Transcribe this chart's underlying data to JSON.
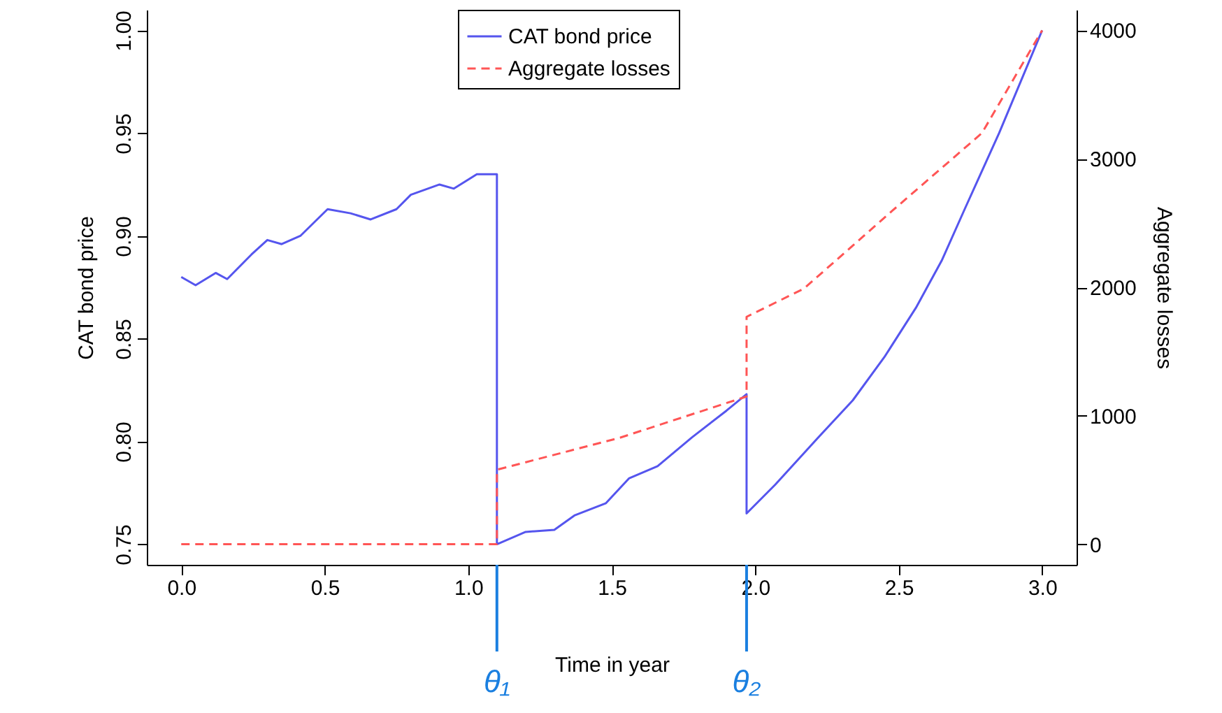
{
  "chart_data": {
    "type": "line",
    "xlabel": "Time in year",
    "ylabel": "CAT bond price",
    "y2label": "Aggregate losses",
    "xlim": [
      -0.12,
      3.12
    ],
    "ylim": [
      0.74,
      1.01
    ],
    "y2lim": [
      -160,
      4160
    ],
    "xticks": [
      {
        "value": 0,
        "label": "0.0"
      },
      0.5,
      {
        "value": 1,
        "label": "1.0"
      },
      1.5,
      {
        "value": 2,
        "label": "2.0"
      },
      2.5,
      {
        "value": 3,
        "label": "3.0"
      }
    ],
    "yticks": [
      0.75,
      {
        "value": 0.8,
        "label": "0.80"
      },
      0.85,
      {
        "value": 0.9,
        "label": "0.90"
      },
      0.95,
      {
        "value": 1,
        "label": "1.00"
      }
    ],
    "y2ticks": [
      0,
      1000,
      2000,
      3000,
      4000
    ],
    "grid": false,
    "legend": "top",
    "series": [
      {
        "name": "CAT bond price",
        "color": "#5555ee",
        "line_style": "solid",
        "x": [
          0,
          0.05,
          0.12,
          0.16,
          0.245,
          0.3,
          0.35,
          0.415,
          0.51,
          0.59,
          0.66,
          0.75,
          0.8,
          0.9,
          0.95,
          1.03,
          1.1,
          1.1,
          1.2,
          1.3,
          1.37,
          1.48,
          1.56,
          1.66,
          1.78,
          1.9,
          1.97,
          1.97,
          2.07,
          2.22,
          2.34,
          2.45,
          2.56,
          2.65,
          2.73,
          2.85,
          3.0
        ],
        "values": [
          0.88,
          0.876,
          0.882,
          0.879,
          0.891,
          0.898,
          0.896,
          0.9,
          0.913,
          0.911,
          0.908,
          0.913,
          0.92,
          0.925,
          0.923,
          0.93,
          0.93,
          0.75,
          0.756,
          0.757,
          0.764,
          0.77,
          0.782,
          0.788,
          0.802,
          0.815,
          0.823,
          0.765,
          0.779,
          0.802,
          0.82,
          0.841,
          0.865,
          0.888,
          0.913,
          0.95,
          1.0
        ]
      },
      {
        "name": "Aggregate losses",
        "color": "#ff5555",
        "line_style": "dashed",
        "axis": "y2",
        "x": [
          0,
          1.1,
          1.1,
          1.53,
          1.97,
          1.97,
          2.17,
          2.48,
          2.79,
          3.0
        ],
        "values": [
          0,
          0,
          580,
          830,
          1150,
          1770,
          1990,
          2600,
          3200,
          4000
        ]
      }
    ],
    "ref_lines": [
      {
        "axis": "x",
        "value": 1.1,
        "label": "θ₁",
        "color": "#1a7fe0"
      },
      {
        "axis": "x",
        "value": 1.97,
        "label": "θ₂",
        "color": "#1a7fe0"
      }
    ]
  }
}
